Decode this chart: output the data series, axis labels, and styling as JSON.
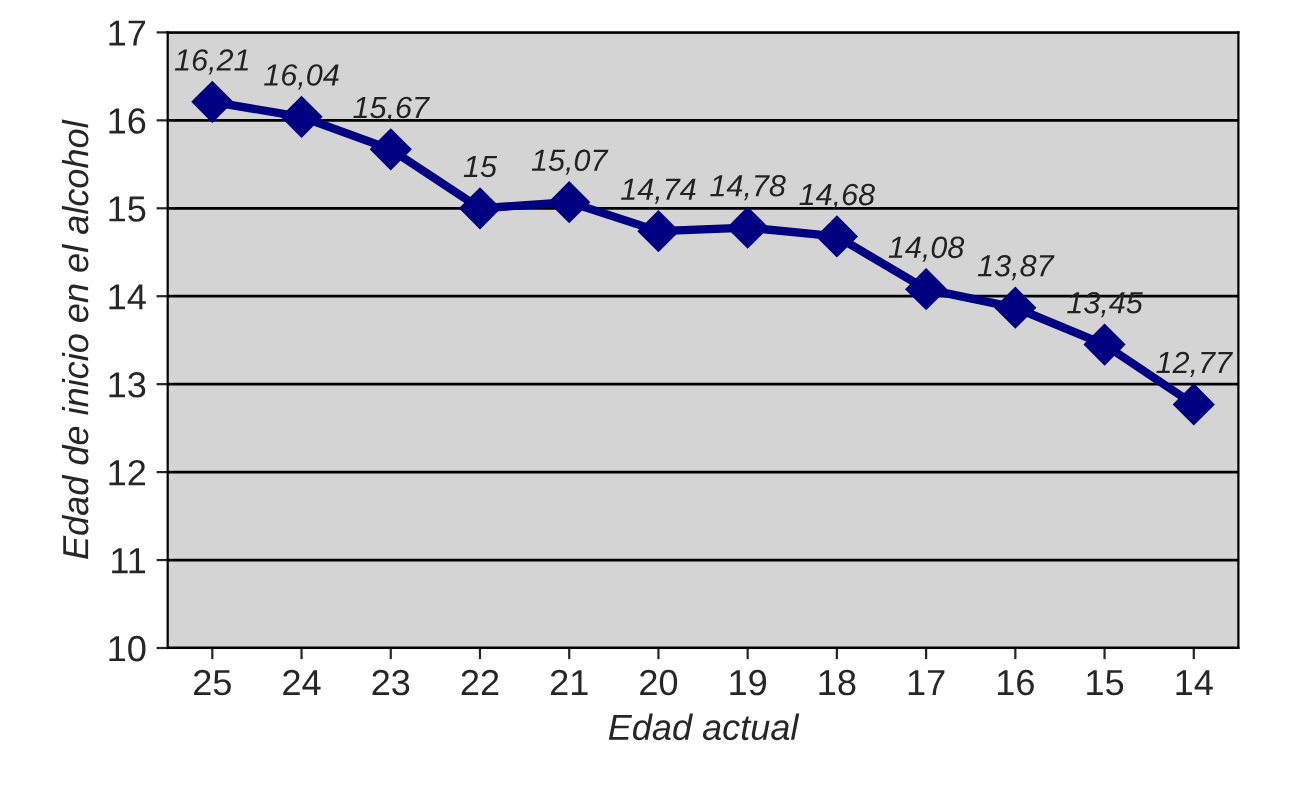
{
  "chart_data": {
    "type": "line",
    "xlabel": "Edad actual",
    "ylabel": "Edad de inicio en el alcohol",
    "categories": [
      "25",
      "24",
      "23",
      "22",
      "21",
      "20",
      "19",
      "18",
      "17",
      "16",
      "15",
      "14"
    ],
    "series": [
      {
        "color": "#000080",
        "values": [
          16.21,
          16.04,
          15.67,
          15,
          15.07,
          14.74,
          14.78,
          14.68,
          14.08,
          13.87,
          13.45,
          12.77
        ],
        "value_labels": [
          "16,21",
          "16,04",
          "15,67",
          "15",
          "15,07",
          "14,74",
          "14,78",
          "14,68",
          "14,08",
          "13,87",
          "13,45",
          "12,77"
        ]
      }
    ],
    "ylim": [
      10,
      17
    ],
    "yticks": [
      10,
      11,
      12,
      13,
      14,
      15,
      16,
      17
    ],
    "grid": "y",
    "marker": "diamond",
    "line_style": "solid",
    "legend": false
  }
}
